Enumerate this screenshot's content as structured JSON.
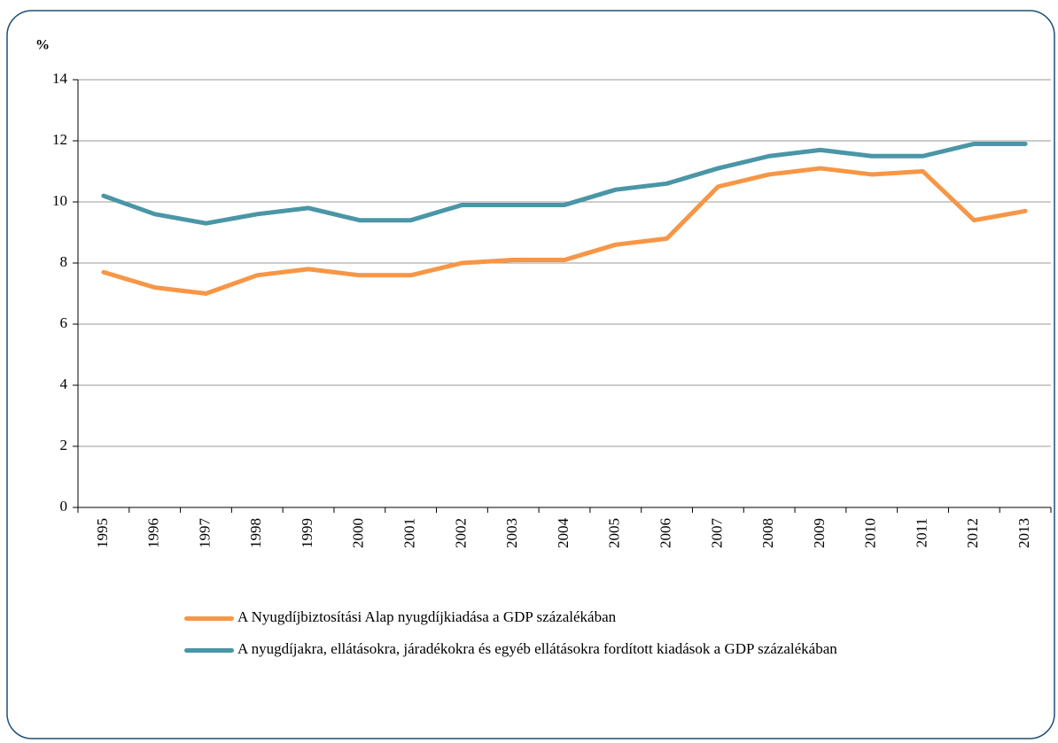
{
  "chart_data": {
    "type": "line",
    "y_label": "%",
    "categories": [
      "1995",
      "1996",
      "1997",
      "1998",
      "1999",
      "2000",
      "2001",
      "2002",
      "2003",
      "2004",
      "2005",
      "2006",
      "2007",
      "2008",
      "2009",
      "2010",
      "2011",
      "2012",
      "2013"
    ],
    "series": [
      {
        "name": "A Nyugdíjbiztosítási Alap nyugdíjkiadása a GDP százalékában",
        "color": "#f79646",
        "values": [
          7.7,
          7.2,
          7.0,
          7.6,
          7.8,
          7.6,
          7.6,
          8.0,
          8.1,
          8.1,
          8.6,
          8.8,
          10.5,
          10.9,
          11.1,
          10.9,
          11.0,
          9.4,
          9.7
        ]
      },
      {
        "name": "A nyugdíjakra, ellátásokra, járadékokra és egyéb ellátásokra fordított kiadások a GDP százalékában",
        "color": "#4a96a6",
        "values": [
          10.2,
          9.6,
          9.3,
          9.6,
          9.8,
          9.4,
          9.4,
          9.9,
          9.9,
          9.9,
          10.4,
          10.6,
          11.1,
          11.5,
          11.7,
          11.5,
          11.5,
          11.9,
          11.9
        ]
      }
    ],
    "ylim": [
      0,
      14
    ],
    "yticks": [
      0,
      2,
      4,
      6,
      8,
      10,
      12,
      14
    ],
    "grid": true,
    "legend": "bottom"
  }
}
